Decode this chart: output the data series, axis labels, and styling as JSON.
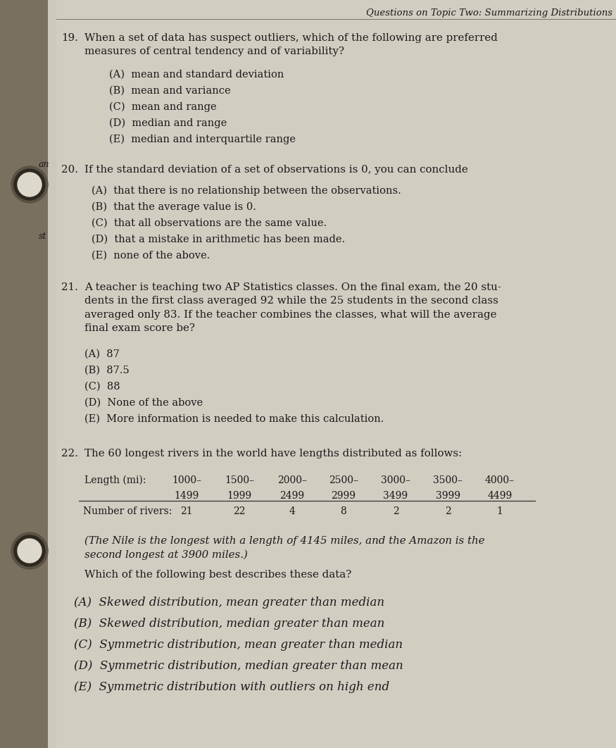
{
  "bg_color": "#b0a898",
  "page_bg": "#cdc8bc",
  "header": "Questions on Topic Two: Summarizing Distributions",
  "header_fontsize": 9.5,
  "q19_body": "When a set of data has suspect outliers, which of the following are preferred\nmeasures of central tendency and of variability?",
  "q19_choices": [
    "(A)  mean and standard deviation",
    "(B)  mean and variance",
    "(C)  mean and range",
    "(D)  median and range",
    "(E)  median and interquartile range"
  ],
  "q20_body": "If the standard deviation of a set of observations is 0, you can conclude",
  "q20_choices": [
    "(A)  that there is no relationship between the observations.",
    "(B)  that the average value is 0.",
    "(C)  that all observations are the same value.",
    "(D)  that a mistake in arithmetic has been made.",
    "(E)  none of the above."
  ],
  "q21_body": "A teacher is teaching two AP Statistics classes. On the final exam, the 20 stu-\ndents in the first class averaged 92 while the 25 students in the second class\naveraged only 83. If the teacher combines the classes, what will the average\nfinal exam score be?",
  "q21_choices": [
    "(A)  87",
    "(B)  87.5",
    "(C)  88",
    "(D)  None of the above",
    "(E)  More information is needed to make this calculation."
  ],
  "q22_intro": "The 60 longest rivers in the world have lengths distributed as follows:",
  "q22_table_row1": [
    "Length (mi):",
    "1000–",
    "1500–",
    "2000–",
    "2500–",
    "3000–",
    "3500–",
    "4000–"
  ],
  "q22_table_row2": [
    "",
    "1499",
    "1999",
    "2499",
    "2999",
    "3499",
    "3999",
    "4499"
  ],
  "q22_data_label": "Number of rivers:",
  "q22_data": [
    "21",
    "22",
    "4",
    "8",
    "2",
    "2",
    "1"
  ],
  "q22_note": "(The Nile is the longest with a length of 4145 miles, and the Amazon is the\nsecond longest at 3900 miles.)",
  "q22_question": "Which of the following best describes these data?",
  "q22_choices": [
    "(A)  Skewed distribution, mean greater than median",
    "(B)  Skewed distribution, median greater than mean",
    "(C)  Symmetric distribution, mean greater than median",
    "(D)  Symmetric distribution, median greater than mean",
    "(E)  Symmetric distribution with outliers on high end"
  ],
  "text_color": "#1a1a1a",
  "fs_body": 10.8,
  "fs_choices": 10.5,
  "fs_number": 10.8
}
